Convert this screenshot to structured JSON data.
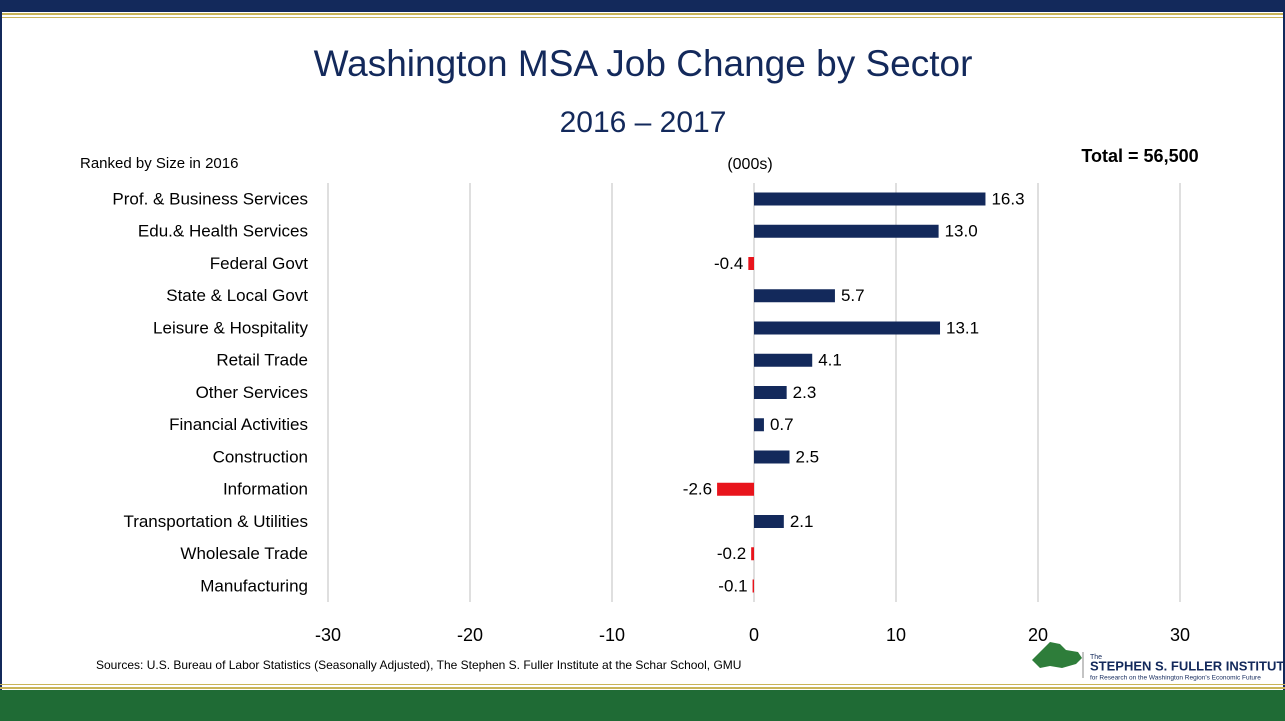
{
  "chart_data": {
    "type": "bar",
    "orientation": "horizontal",
    "title": "Washington MSA Job Change by Sector",
    "subtitle": "2016 – 2017",
    "annotation": "Total = 56,500",
    "category_axis_label": "Ranked by Size in 2016",
    "value_axis_label": "(000s)",
    "source": "Sources: U.S. Bureau of Labor Statistics (Seasonally Adjusted), The Stephen S. Fuller Institute at the Schar School, GMU",
    "logo": {
      "small": "The",
      "name": "STEPHEN S. FULLER INSTITUTE",
      "tagline": "for Research on the Washington Region's Economic Future"
    },
    "categories": [
      "Prof. & Business Services",
      "Edu.& Health Services",
      "Federal Govt",
      "State & Local Govt",
      "Leisure & Hospitality",
      "Retail Trade",
      "Other Services",
      "Financial Activities",
      "Construction",
      "Information",
      "Transportation & Utilities",
      "Wholesale Trade",
      "Manufacturing"
    ],
    "values": [
      16.3,
      13.0,
      -0.4,
      5.7,
      13.1,
      4.1,
      2.3,
      0.7,
      2.5,
      -2.6,
      2.1,
      -0.2,
      -0.1
    ],
    "value_labels": [
      "16.3",
      "13.0",
      "-0.4",
      "5.7",
      "13.1",
      "4.1",
      "2.3",
      "0.7",
      "2.5",
      "-2.6",
      "2.1",
      "-0.2",
      "-0.1"
    ],
    "color": "#13295b",
    "negative_color": "#e8141c",
    "xlim": [
      -30,
      30
    ],
    "xticks": [
      -30,
      -20,
      -10,
      0,
      10,
      20,
      30
    ],
    "grid": true
  }
}
